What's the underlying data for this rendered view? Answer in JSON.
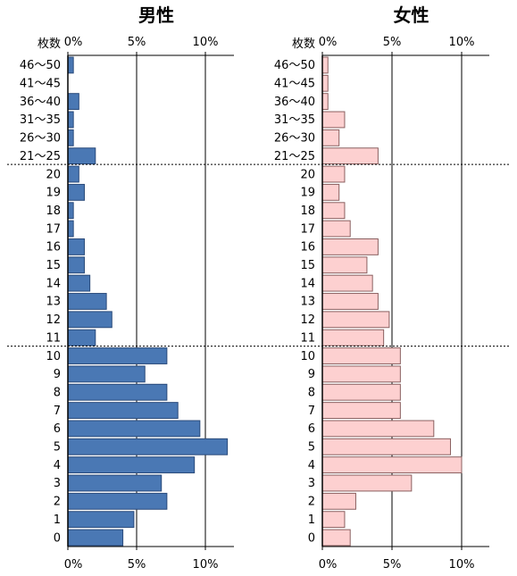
{
  "chart_data": [
    {
      "type": "bar",
      "orientation": "horizontal",
      "title": "男性",
      "category_axis_label": "枚数",
      "categories": [
        "46〜50",
        "41〜45",
        "36〜40",
        "31〜35",
        "26〜30",
        "21〜25",
        "20",
        "19",
        "18",
        "17",
        "16",
        "15",
        "14",
        "13",
        "12",
        "11",
        "10",
        "9",
        "8",
        "7",
        "6",
        "5",
        "4",
        "3",
        "2",
        "1",
        "0"
      ],
      "values": [
        0.4,
        0.0,
        0.8,
        0.4,
        0.4,
        2.0,
        0.8,
        1.2,
        0.4,
        0.4,
        1.2,
        1.2,
        1.6,
        2.8,
        3.2,
        2.0,
        7.2,
        5.6,
        7.2,
        8.0,
        9.6,
        11.6,
        9.2,
        6.8,
        7.2,
        4.8,
        4.0
      ],
      "x_ticks": [
        "0%",
        "5%",
        "10%"
      ],
      "xlim": [
        0,
        12
      ],
      "bar_color": "#4a78b4",
      "bar_edge": "#2a4a7a",
      "grid": "vertical",
      "group_separators_after": [
        "21〜25",
        "11"
      ]
    },
    {
      "type": "bar",
      "orientation": "horizontal",
      "title": "女性",
      "category_axis_label": "枚数",
      "categories": [
        "46〜50",
        "41〜45",
        "36〜40",
        "31〜35",
        "26〜30",
        "21〜25",
        "20",
        "19",
        "18",
        "17",
        "16",
        "15",
        "14",
        "13",
        "12",
        "11",
        "10",
        "9",
        "8",
        "7",
        "6",
        "5",
        "4",
        "3",
        "2",
        "1",
        "0"
      ],
      "values": [
        0.4,
        0.4,
        0.4,
        1.6,
        1.2,
        4.0,
        1.6,
        1.2,
        1.6,
        2.0,
        4.0,
        3.2,
        3.6,
        4.0,
        4.8,
        4.4,
        5.6,
        5.6,
        5.6,
        5.6,
        8.0,
        9.2,
        10.0,
        6.4,
        2.4,
        1.6,
        2.0
      ],
      "x_ticks": [
        "0%",
        "5%",
        "10%"
      ],
      "xlim": [
        0,
        12
      ],
      "bar_color": "#fdd0d0",
      "bar_edge": "#8a6060",
      "grid": "vertical",
      "group_separators_after": [
        "21〜25",
        "11"
      ]
    }
  ]
}
